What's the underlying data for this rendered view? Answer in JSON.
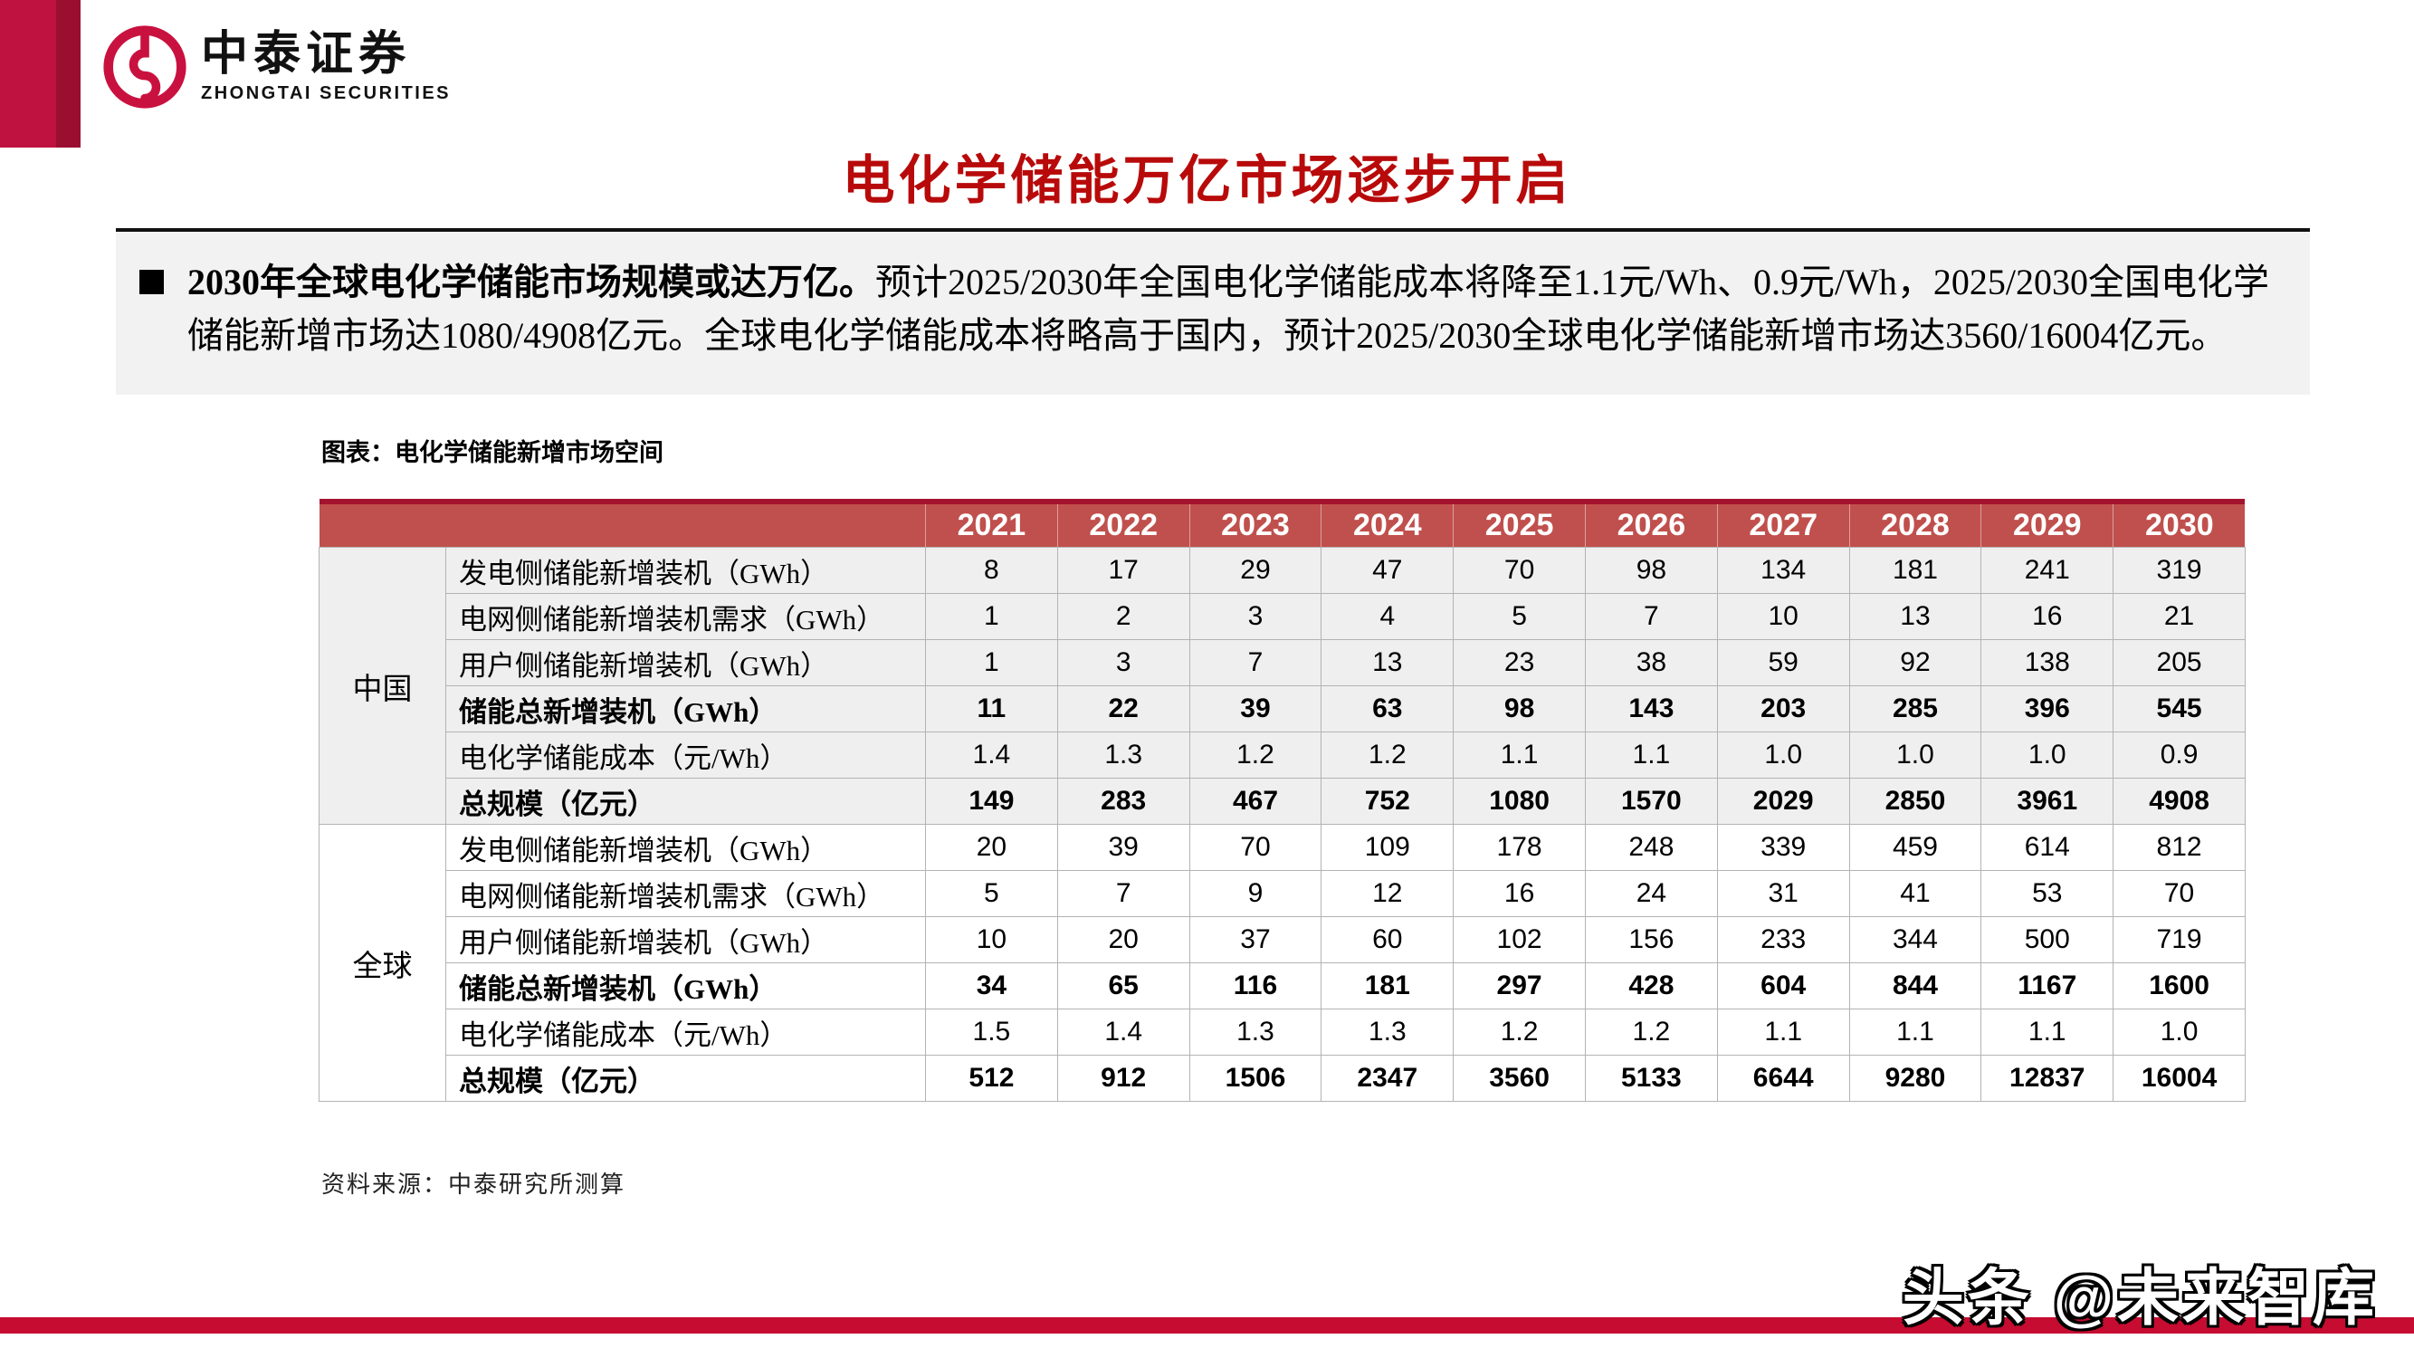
{
  "brand": {
    "name_cn": "中泰证券",
    "name_en": "ZHONGTAI SECURITIES"
  },
  "slide": {
    "title": "电化学储能万亿市场逐步开启",
    "bullet_bold": "2030年全球电化学储能市场规模或达万亿。",
    "bullet_text": "预计2025/2030年全国电化学储能成本将降至1.1元/Wh、0.9元/Wh，2025/2030全国电化学储能新增市场达1080/4908亿元。全球电化学储能成本将略高于国内，预计2025/2030全球电化学储能新增市场达3560/16004亿元。",
    "chart_caption": "图表：电化学储能新增市场空间",
    "source": "资料来源：中泰研究所测算",
    "watermark": "头条 @未来智库"
  },
  "colors": {
    "brand_crimson": "#C01240",
    "strip_maroon": "#9A0F2F",
    "title_red": "#B80A0A",
    "table_header_bg": "#C0504D",
    "table_header_topline": "#A3132E",
    "china_row_bg": "#EFEFEF",
    "global_row_bg": "#FFFFFF",
    "summary_band_bg": "#F2F2F2",
    "bottom_bar": "#C60C30"
  },
  "chart_data": {
    "type": "table",
    "title": "电化学储能新增市场空间",
    "columns": [
      "2021",
      "2022",
      "2023",
      "2024",
      "2025",
      "2026",
      "2027",
      "2028",
      "2029",
      "2030"
    ],
    "groups": [
      {
        "name": "中国",
        "rows": [
          {
            "label": "发电侧储能新增装机（GWh）",
            "bold": false,
            "values": [
              "8",
              "17",
              "29",
              "47",
              "70",
              "98",
              "134",
              "181",
              "241",
              "319"
            ]
          },
          {
            "label": "电网侧储能新增装机需求（GWh）",
            "bold": false,
            "values": [
              "1",
              "2",
              "3",
              "4",
              "5",
              "7",
              "10",
              "13",
              "16",
              "21"
            ]
          },
          {
            "label": "用户侧储能新增装机（GWh）",
            "bold": false,
            "values": [
              "1",
              "3",
              "7",
              "13",
              "23",
              "38",
              "59",
              "92",
              "138",
              "205"
            ]
          },
          {
            "label": "储能总新增装机（GWh）",
            "bold": true,
            "values": [
              "11",
              "22",
              "39",
              "63",
              "98",
              "143",
              "203",
              "285",
              "396",
              "545"
            ]
          },
          {
            "label": "电化学储能成本（元/Wh）",
            "bold": false,
            "values": [
              "1.4",
              "1.3",
              "1.2",
              "1.2",
              "1.1",
              "1.1",
              "1.0",
              "1.0",
              "1.0",
              "0.9"
            ]
          },
          {
            "label": "总规模（亿元）",
            "bold": true,
            "values": [
              "149",
              "283",
              "467",
              "752",
              "1080",
              "1570",
              "2029",
              "2850",
              "3961",
              "4908"
            ]
          }
        ]
      },
      {
        "name": "全球",
        "rows": [
          {
            "label": "发电侧储能新增装机（GWh）",
            "bold": false,
            "values": [
              "20",
              "39",
              "70",
              "109",
              "178",
              "248",
              "339",
              "459",
              "614",
              "812"
            ]
          },
          {
            "label": "电网侧储能新增装机需求（GWh）",
            "bold": false,
            "values": [
              "5",
              "7",
              "9",
              "12",
              "16",
              "24",
              "31",
              "41",
              "53",
              "70"
            ]
          },
          {
            "label": "用户侧储能新增装机（GWh）",
            "bold": false,
            "values": [
              "10",
              "20",
              "37",
              "60",
              "102",
              "156",
              "233",
              "344",
              "500",
              "719"
            ]
          },
          {
            "label": "储能总新增装机（GWh）",
            "bold": true,
            "values": [
              "34",
              "65",
              "116",
              "181",
              "297",
              "428",
              "604",
              "844",
              "1167",
              "1600"
            ]
          },
          {
            "label": "电化学储能成本（元/Wh）",
            "bold": false,
            "values": [
              "1.5",
              "1.4",
              "1.3",
              "1.3",
              "1.2",
              "1.2",
              "1.1",
              "1.1",
              "1.1",
              "1.0"
            ]
          },
          {
            "label": "总规模（亿元）",
            "bold": true,
            "values": [
              "512",
              "912",
              "1506",
              "2347",
              "3560",
              "5133",
              "6644",
              "9280",
              "12837",
              "16004"
            ]
          }
        ]
      }
    ]
  }
}
